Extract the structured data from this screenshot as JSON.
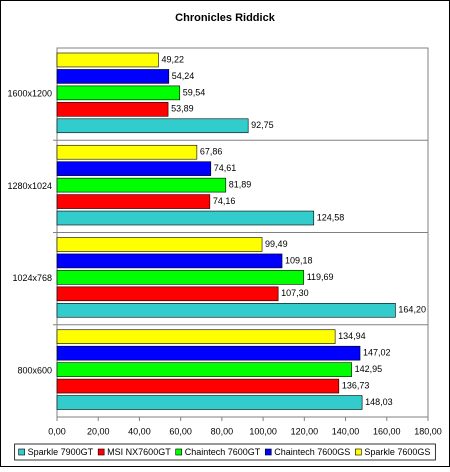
{
  "chart_data": {
    "type": "bar",
    "horizontal": true,
    "title": "Chronicles Riddick",
    "categories": [
      "1600x1200",
      "1280x1024",
      "1024x768",
      "800x600"
    ],
    "series": [
      {
        "name": "Sparkle 7900GT",
        "color": "#33cccc",
        "values": [
          92.75,
          124.58,
          164.2,
          148.03
        ],
        "value_labels": [
          "92,75",
          "124,58",
          "164,20",
          "148,03"
        ]
      },
      {
        "name": "MSI NX7600GT",
        "color": "#ff0000",
        "values": [
          53.89,
          74.16,
          107.3,
          136.73
        ],
        "value_labels": [
          "53,89",
          "74,16",
          "107,30",
          "136,73"
        ]
      },
      {
        "name": "Chaintech 7600GT",
        "color": "#00ff00",
        "values": [
          59.54,
          81.89,
          119.69,
          142.95
        ],
        "value_labels": [
          "59,54",
          "81,89",
          "119,69",
          "142,95"
        ]
      },
      {
        "name": "Chaintech 7600GS",
        "color": "#0000ff",
        "values": [
          54.24,
          74.61,
          109.18,
          147.02
        ],
        "value_labels": [
          "54,24",
          "74,61",
          "109,18",
          "147,02"
        ]
      },
      {
        "name": "Sparkle 7600GS",
        "color": "#ffff00",
        "values": [
          49.22,
          67.86,
          99.49,
          134.94
        ],
        "value_labels": [
          "49,22",
          "67,86",
          "99,49",
          "134,94"
        ]
      }
    ],
    "xlim": [
      0,
      180
    ],
    "xticks": [
      {
        "value": 0,
        "label": "0,00"
      },
      {
        "value": 20,
        "label": "20,00"
      },
      {
        "value": 40,
        "label": "40,00"
      },
      {
        "value": 60,
        "label": "60,00"
      },
      {
        "value": 80,
        "label": "80,00"
      },
      {
        "value": 100,
        "label": "100,00"
      },
      {
        "value": 120,
        "label": "120,00"
      },
      {
        "value": 140,
        "label": "140,00"
      },
      {
        "value": 160,
        "label": "160,00"
      },
      {
        "value": 180,
        "label": "180,00"
      }
    ]
  }
}
